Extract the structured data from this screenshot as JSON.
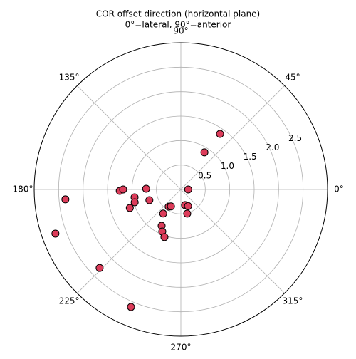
{
  "chart_data": {
    "type": "polar-scatter",
    "title": "COR offset direction (horizontal plane)",
    "subtitle": "0°=lateral, 90°=anterior",
    "x": [
      54.8,
      57.6,
      0,
      184.9,
      199.4,
      224,
      247,
      181.3,
      180,
      178.8,
      189.6,
      195.5,
      199.9,
      198.8,
      234.7,
      239.7,
      233.7,
      285,
      293.5,
      284.8,
      242.1,
      246.2,
      251
    ],
    "values": [
      1.39,
      0.9,
      0.15,
      2.37,
      2.72,
      2.31,
      2.61,
      1.25,
      1.18,
      0.71,
      0.96,
      0.98,
      1.11,
      0.68,
      0.43,
      0.4,
      0.61,
      0.33,
      0.37,
      0.51,
      0.84,
      0.94,
      1.03
    ],
    "color": "#dc3c5a",
    "edgecolor": "#000000",
    "ylim": [
      0,
      3.0
    ],
    "yticks": [
      0.5,
      {
        "value": 1.0,
        "label": "1.0"
      },
      1.5,
      {
        "value": 2.0,
        "label": "2.0"
      },
      2.5
    ],
    "xticks": [
      {
        "value": 0,
        "label": "0°"
      },
      {
        "value": 45,
        "label": "45°"
      },
      {
        "value": 90,
        "label": "90°"
      },
      {
        "value": 135,
        "label": "135°"
      },
      {
        "value": 180,
        "label": "180°"
      },
      {
        "value": 225,
        "label": "225°"
      },
      {
        "value": 270,
        "label": "270°"
      },
      {
        "value": 315,
        "label": "315°"
      }
    ],
    "grid": true
  }
}
